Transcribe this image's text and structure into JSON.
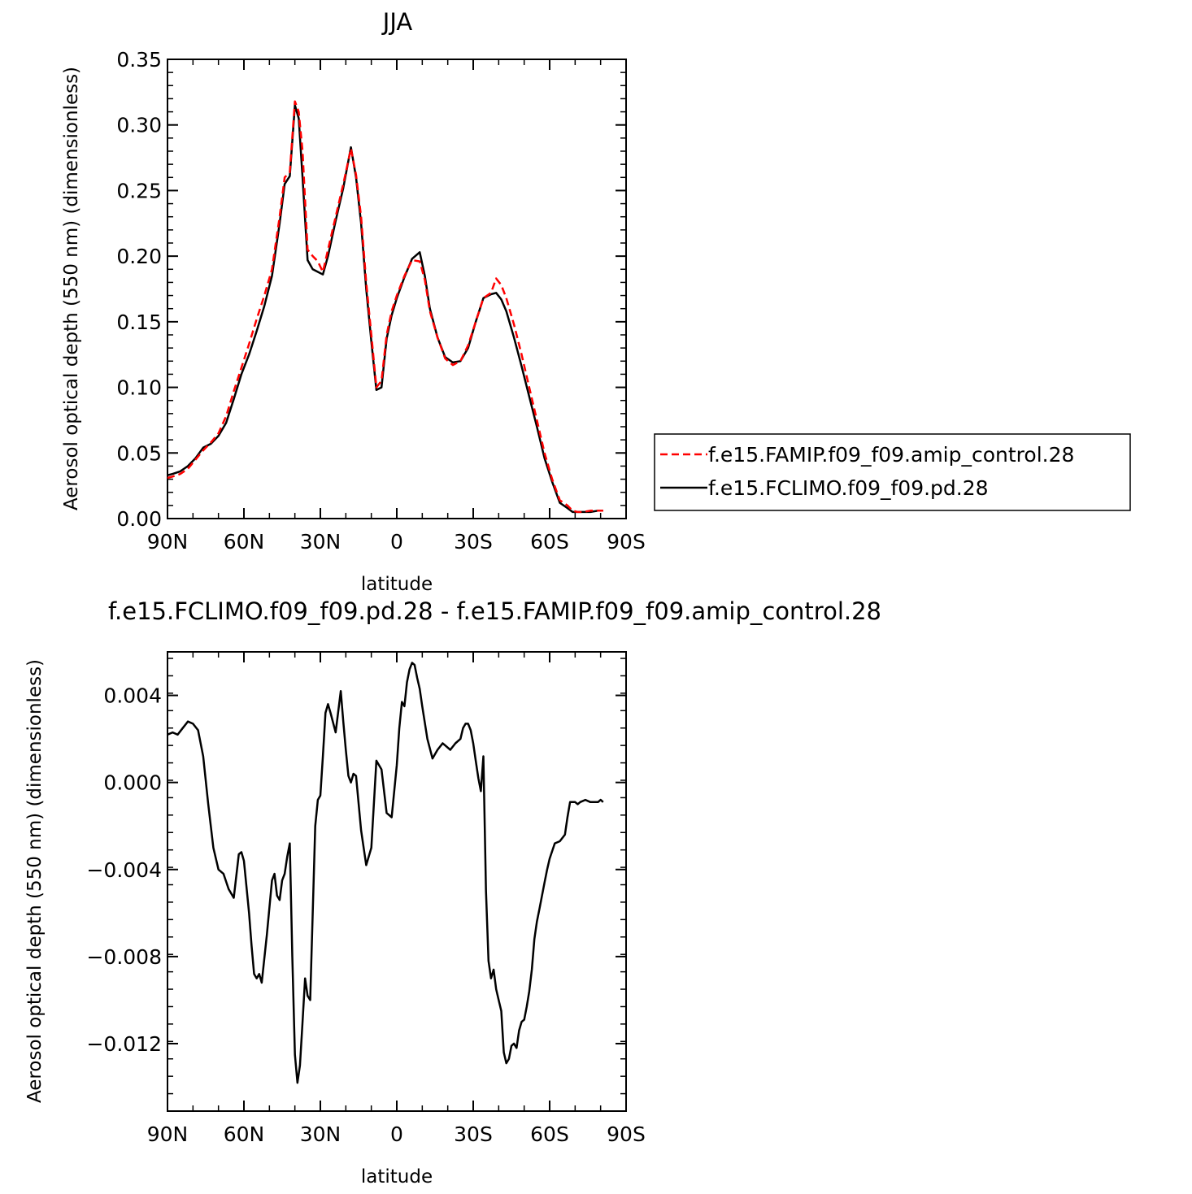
{
  "chart_data": [
    {
      "type": "line",
      "title": "JJA",
      "xlabel": "latitude",
      "ylabel": "Aerosol optical depth (550 nm) (dimensionless)",
      "xlim": [
        90,
        -90
      ],
      "ylim": [
        0,
        0.35
      ],
      "x_ticks": [
        90,
        60,
        30,
        0,
        -30,
        -60,
        -90
      ],
      "x_tick_labels": [
        "90N",
        "60N",
        "30N",
        "0",
        "30S",
        "60S",
        "90S"
      ],
      "y_ticks": [
        0,
        0.05,
        0.1,
        0.15,
        0.2,
        0.25,
        0.3,
        0.35
      ],
      "y_tick_labels": [
        "0.00",
        "0.05",
        "0.10",
        "0.15",
        "0.20",
        "0.25",
        "0.30",
        "0.35"
      ],
      "legend": "right",
      "x": [
        90,
        88,
        85,
        82,
        79,
        76,
        73,
        70,
        67,
        64,
        61,
        58,
        55,
        52,
        49,
        46,
        44,
        42,
        40,
        38.5,
        37,
        35,
        33,
        31,
        29,
        27,
        24,
        21,
        18,
        16,
        14,
        12,
        10,
        8,
        6,
        4,
        2,
        0,
        -3,
        -6,
        -9,
        -11,
        -13,
        -16,
        -19,
        -22,
        -25,
        -28,
        -31,
        -34,
        -37,
        -39,
        -41,
        -43,
        -46,
        -49,
        -52,
        -55,
        -58,
        -61,
        -64,
        -67,
        -69,
        -71,
        -73,
        -76,
        -79,
        -81
      ],
      "series": [
        {
          "name": "f.e15.FAMIP.f09_f09.amip_control.28",
          "color": "#ff0000",
          "dash": "dashed",
          "values": [
            0.031,
            0.032,
            0.034,
            0.038,
            0.045,
            0.052,
            0.058,
            0.065,
            0.078,
            0.097,
            0.115,
            0.133,
            0.152,
            0.17,
            0.19,
            0.23,
            0.26,
            0.264,
            0.318,
            0.31,
            0.28,
            0.205,
            0.2,
            0.196,
            0.188,
            0.205,
            0.23,
            0.255,
            0.282,
            0.262,
            0.23,
            0.18,
            0.14,
            0.1,
            0.105,
            0.14,
            0.158,
            0.17,
            0.185,
            0.197,
            0.196,
            0.182,
            0.158,
            0.138,
            0.122,
            0.117,
            0.12,
            0.132,
            0.15,
            0.168,
            0.172,
            0.183,
            0.178,
            0.168,
            0.148,
            0.125,
            0.1,
            0.075,
            0.05,
            0.03,
            0.014,
            0.01,
            0.006,
            0.005,
            0.005,
            0.006,
            0.006,
            0.006
          ]
        },
        {
          "name": "f.e15.FCLIMO.f09_f09.pd.28",
          "color": "#000000",
          "dash": "solid",
          "values": [
            0.033,
            0.034,
            0.036,
            0.04,
            0.046,
            0.054,
            0.057,
            0.063,
            0.073,
            0.091,
            0.11,
            0.125,
            0.143,
            0.162,
            0.185,
            0.225,
            0.255,
            0.261,
            0.315,
            0.305,
            0.26,
            0.197,
            0.19,
            0.188,
            0.186,
            0.2,
            0.227,
            0.252,
            0.283,
            0.26,
            0.225,
            0.175,
            0.135,
            0.098,
            0.1,
            0.137,
            0.155,
            0.168,
            0.184,
            0.198,
            0.203,
            0.185,
            0.16,
            0.138,
            0.123,
            0.119,
            0.12,
            0.13,
            0.15,
            0.168,
            0.171,
            0.172,
            0.167,
            0.158,
            0.138,
            0.116,
            0.093,
            0.07,
            0.046,
            0.028,
            0.012,
            0.008,
            0.005,
            0.005,
            0.005,
            0.005,
            0.006,
            0.006
          ]
        }
      ]
    },
    {
      "type": "line",
      "title": "f.e15.FCLIMO.f09_f09.pd.28 - f.e15.FAMIP.f09_f09.amip_control.28",
      "xlabel": "latitude",
      "ylabel": "Aerosol optical depth (550 nm) (dimensionless)",
      "xlim": [
        90,
        -90
      ],
      "ylim": [
        -0.0151,
        0.006
      ],
      "x_ticks": [
        90,
        60,
        30,
        0,
        -30,
        -60,
        -90
      ],
      "x_tick_labels": [
        "90N",
        "60N",
        "30N",
        "0",
        "30S",
        "60S",
        "90S"
      ],
      "y_ticks": [
        0.004,
        0,
        -0.004,
        -0.008,
        -0.012
      ],
      "y_tick_labels": [
        "0.004",
        "0.000",
        "−0.004",
        "−0.008",
        "−0.012"
      ],
      "x": [
        90,
        88,
        86,
        84,
        82,
        80,
        78,
        76,
        74,
        72,
        70,
        68,
        66,
        64,
        62,
        61,
        60,
        58,
        57,
        56,
        55,
        54,
        53,
        51,
        49,
        48,
        47,
        46,
        45,
        44,
        43,
        42,
        41,
        40,
        39,
        38,
        37,
        36,
        35,
        34,
        33,
        32,
        31,
        30,
        29,
        28,
        27,
        26,
        24,
        22,
        21,
        20,
        19,
        18,
        17,
        16,
        14,
        12,
        10,
        8,
        6,
        4,
        2,
        0,
        -1,
        -2,
        -3,
        -4,
        -5,
        -6,
        -7,
        -8,
        -9,
        -10,
        -12,
        -14,
        -16,
        -18,
        -19,
        -21,
        -23,
        -25,
        -26,
        -27,
        -28,
        -29,
        -30,
        -31,
        -32,
        -33,
        -34,
        -35,
        -36,
        -37,
        -38,
        -39,
        -40,
        -41,
        -42,
        -43,
        -44,
        -45,
        -46,
        -47,
        -48,
        -49,
        -50,
        -51,
        -52,
        -53,
        -54,
        -55,
        -56,
        -57,
        -58,
        -59,
        -60,
        -62,
        -64,
        -66,
        -67,
        -68,
        -69,
        -70,
        -71,
        -72,
        -74,
        -76,
        -78,
        -79,
        -80,
        -81
      ],
      "series": [
        {
          "name": "",
          "color": "#000000",
          "dash": "solid",
          "values": [
            0.0022,
            0.0023,
            0.0022,
            0.0025,
            0.0028,
            0.0027,
            0.0024,
            0.0012,
            -0.001,
            -0.003,
            -0.004,
            -0.0042,
            -0.0049,
            -0.0053,
            -0.0033,
            -0.0032,
            -0.0036,
            -0.006,
            -0.0075,
            -0.0088,
            -0.009,
            -0.0088,
            -0.0092,
            -0.007,
            -0.0045,
            -0.0042,
            -0.0052,
            -0.0054,
            -0.0045,
            -0.0042,
            -0.0034,
            -0.0028,
            -0.008,
            -0.0125,
            -0.0138,
            -0.013,
            -0.011,
            -0.009,
            -0.0098,
            -0.01,
            -0.006,
            -0.002,
            -0.0008,
            -0.0006,
            0.0012,
            0.0032,
            0.0036,
            0.0032,
            0.0023,
            0.0042,
            0.0028,
            0.0015,
            0.0003,
            0.0,
            0.0004,
            0.0003,
            -0.0022,
            -0.0038,
            -0.003,
            0.001,
            0.0006,
            -0.0014,
            -0.0016,
            0.0008,
            0.0025,
            0.0037,
            0.0035,
            0.0046,
            0.0052,
            0.0055,
            0.0054,
            0.0048,
            0.0043,
            0.0035,
            0.002,
            0.0011,
            0.0015,
            0.0018,
            0.0017,
            0.0015,
            0.0018,
            0.002,
            0.0025,
            0.0027,
            0.0027,
            0.0024,
            0.0018,
            0.001,
            0.0002,
            -0.0004,
            0.0012,
            -0.005,
            -0.0082,
            -0.009,
            -0.0086,
            -0.0095,
            -0.01,
            -0.0105,
            -0.0124,
            -0.0129,
            -0.0127,
            -0.0121,
            -0.012,
            -0.0122,
            -0.0114,
            -0.011,
            -0.0109,
            -0.0103,
            -0.0096,
            -0.0086,
            -0.0072,
            -0.0064,
            -0.0058,
            -0.0052,
            -0.0046,
            -0.004,
            -0.0035,
            -0.0028,
            -0.0027,
            -0.0024,
            -0.0016,
            -0.0009,
            -0.0009,
            -0.0009,
            -0.001,
            -0.0009,
            -0.0008,
            -0.0009,
            -0.0009,
            -0.0009,
            -0.0008,
            -0.0009
          ]
        }
      ]
    }
  ]
}
